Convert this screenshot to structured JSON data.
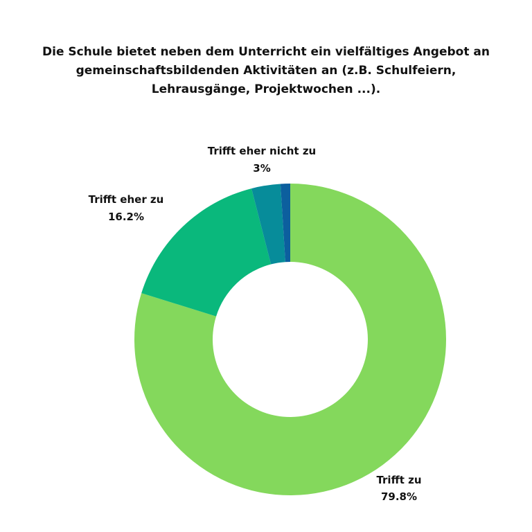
{
  "chart_data": {
    "type": "pie",
    "donut": true,
    "title_lines": [
      "Die Schule bietet neben dem Unterricht ein vielfältiges Angebot an",
      "gemeinschaftsbildenden Aktivitäten an (z.B. Schulfeiern,",
      "Lehrausgänge, Projektwochen ...)."
    ],
    "slices": [
      {
        "label": "Trifft zu",
        "value": 79.8,
        "value_label": "79.8%",
        "color": "#84d85c"
      },
      {
        "label": "Trifft eher zu",
        "value": 16.2,
        "value_label": "16.2%",
        "color": "#0ab87c"
      },
      {
        "label": "Trifft eher nicht zu",
        "value": 3.0,
        "value_label": "3%",
        "color": "#078c9a"
      },
      {
        "label": "",
        "value": 1.0,
        "value_label": "",
        "color": "#0c5f9e"
      }
    ]
  }
}
